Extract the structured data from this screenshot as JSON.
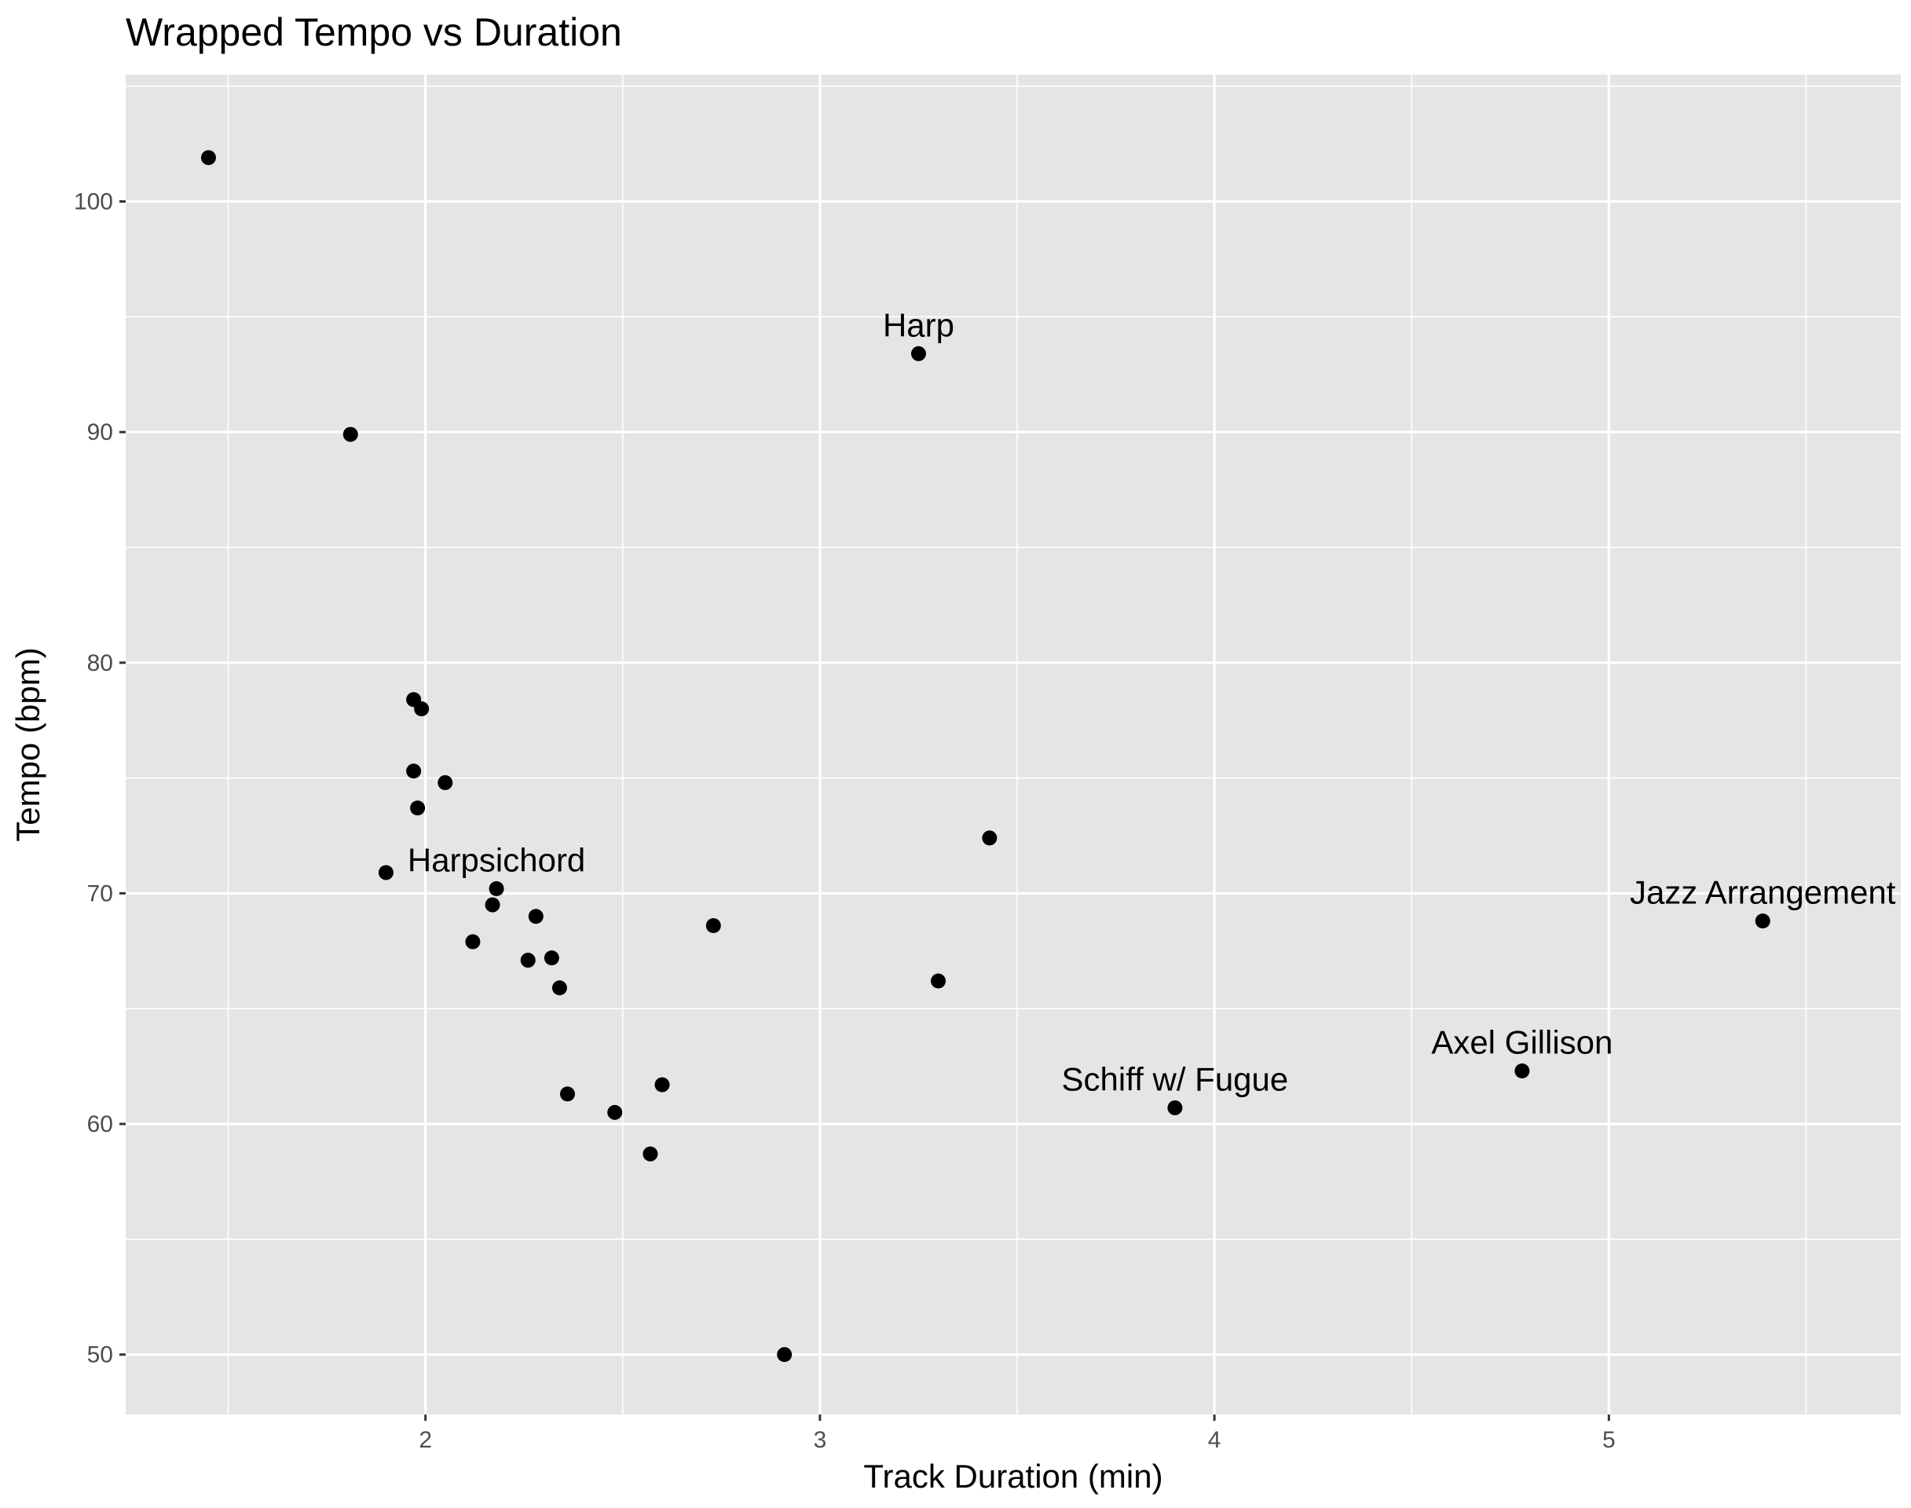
{
  "chart_data": {
    "type": "scatter",
    "title": "Wrapped Tempo vs Duration",
    "xlabel": "Track Duration (min)",
    "ylabel": "Tempo (bpm)",
    "xlim": [
      1.24,
      5.74
    ],
    "ylim": [
      47.4,
      105.5
    ],
    "x_ticks": [
      2,
      3,
      4,
      5
    ],
    "y_ticks": [
      50,
      60,
      70,
      80,
      90,
      100
    ],
    "x_tick_labels": [
      "2",
      "3",
      "4",
      "5"
    ],
    "y_tick_labels": [
      "50",
      "60",
      "70",
      "80",
      "90",
      "100"
    ],
    "grid": true,
    "background_color": "#e5e5e5",
    "point_color": "#000000",
    "points": [
      {
        "x": 1.45,
        "y": 101.9,
        "label": ""
      },
      {
        "x": 1.81,
        "y": 89.9,
        "label": ""
      },
      {
        "x": 1.9,
        "y": 70.9,
        "label": ""
      },
      {
        "x": 1.97,
        "y": 78.4,
        "label": ""
      },
      {
        "x": 1.99,
        "y": 78.0,
        "label": ""
      },
      {
        "x": 1.97,
        "y": 75.3,
        "label": ""
      },
      {
        "x": 1.98,
        "y": 73.7,
        "label": ""
      },
      {
        "x": 2.05,
        "y": 74.8,
        "label": ""
      },
      {
        "x": 2.18,
        "y": 70.2,
        "label": "Harpsichord"
      },
      {
        "x": 2.17,
        "y": 69.5,
        "label": ""
      },
      {
        "x": 2.12,
        "y": 67.9,
        "label": ""
      },
      {
        "x": 2.28,
        "y": 69.0,
        "label": ""
      },
      {
        "x": 2.26,
        "y": 67.1,
        "label": ""
      },
      {
        "x": 2.32,
        "y": 67.2,
        "label": ""
      },
      {
        "x": 2.34,
        "y": 65.9,
        "label": ""
      },
      {
        "x": 2.36,
        "y": 61.3,
        "label": ""
      },
      {
        "x": 2.48,
        "y": 60.5,
        "label": ""
      },
      {
        "x": 2.57,
        "y": 58.7,
        "label": ""
      },
      {
        "x": 2.6,
        "y": 61.7,
        "label": ""
      },
      {
        "x": 2.73,
        "y": 68.6,
        "label": ""
      },
      {
        "x": 2.91,
        "y": 50.0,
        "label": ""
      },
      {
        "x": 3.25,
        "y": 93.4,
        "label": "Harp"
      },
      {
        "x": 3.3,
        "y": 66.2,
        "label": ""
      },
      {
        "x": 3.43,
        "y": 72.4,
        "label": ""
      },
      {
        "x": 3.9,
        "y": 60.7,
        "label": "Schiff w/ Fugue"
      },
      {
        "x": 4.78,
        "y": 62.3,
        "label": "Axel Gillison"
      },
      {
        "x": 5.39,
        "y": 68.8,
        "label": "Jazz Arrangement"
      }
    ]
  }
}
